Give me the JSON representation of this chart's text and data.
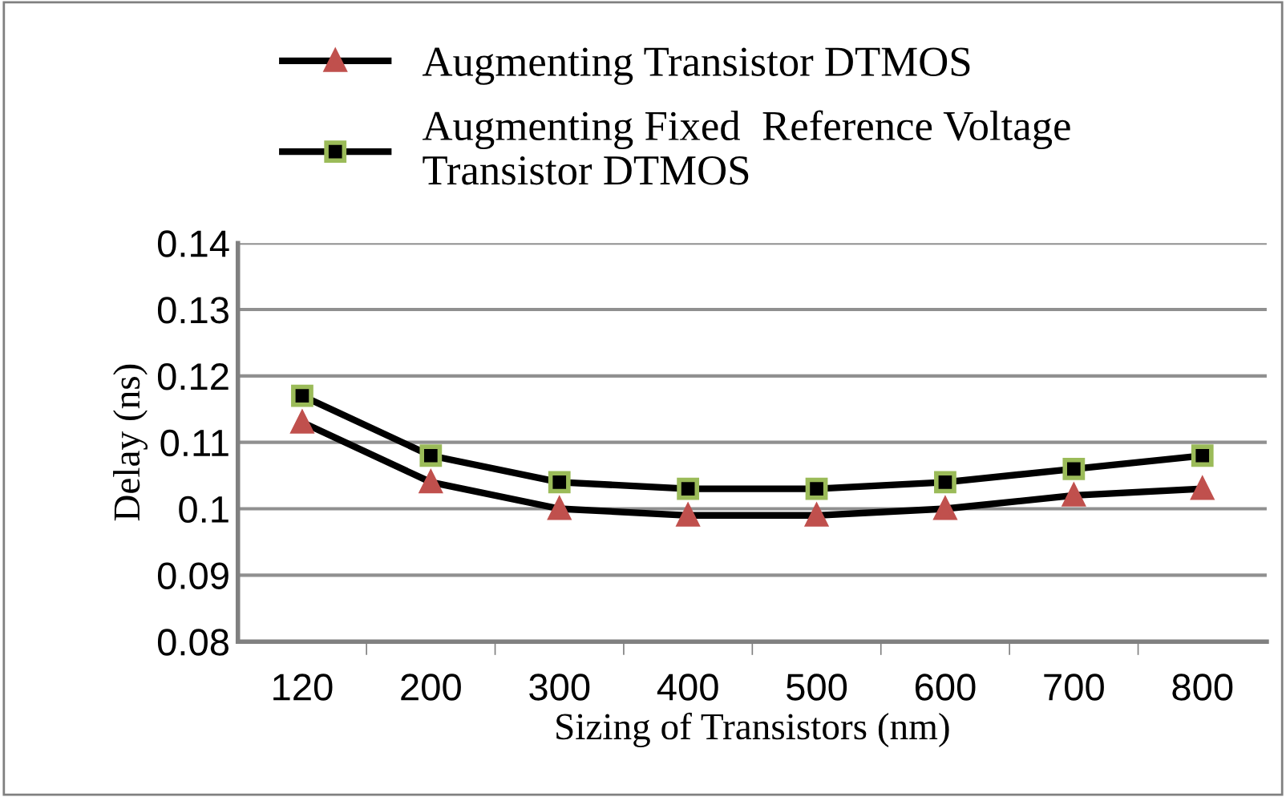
{
  "chart_data": {
    "type": "line",
    "xlabel": "Sizing of Transistors (nm)",
    "ylabel": "Delay (ns)",
    "categories": [
      "120",
      "200",
      "300",
      "400",
      "500",
      "600",
      "700",
      "800"
    ],
    "series": [
      {
        "name": "Augmenting Transistor DTMOS",
        "color": "#000000",
        "marker": "triangle",
        "values": [
          0.113,
          0.104,
          0.1,
          0.099,
          0.099,
          0.1,
          0.102,
          0.103
        ]
      },
      {
        "name": "Augmenting Fixed  Reference Voltage\nTransistor DTMOS",
        "color": "#000000",
        "marker": "square",
        "values": [
          0.117,
          0.108,
          0.104,
          0.103,
          0.103,
          0.104,
          0.106,
          0.108
        ]
      }
    ],
    "ylim": [
      0.08,
      0.14
    ],
    "yticks": [
      0.08,
      0.09,
      0.1,
      0.11,
      0.12,
      0.13,
      0.14
    ],
    "grid": "y",
    "legend": "top",
    "line_style": "solid"
  }
}
